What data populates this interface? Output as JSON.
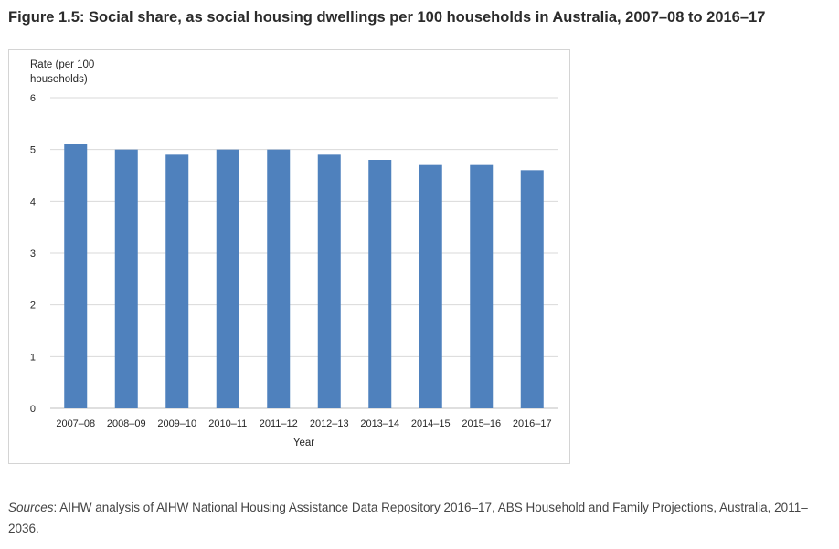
{
  "figure": {
    "title": "Figure 1.5: Social share, as social housing dwellings per 100 households in Australia, 2007–08 to 2016–17"
  },
  "chart_data": {
    "type": "bar",
    "title": "",
    "xlabel": "Year",
    "ylabel_lines": [
      "Rate (per 100",
      "households)"
    ],
    "categories": [
      "2007–08",
      "2008–09",
      "2009–10",
      "2010–11",
      "2011–12",
      "2012–13",
      "2013–14",
      "2014–15",
      "2015–16",
      "2016–17"
    ],
    "values": [
      5.1,
      5.0,
      4.9,
      5.0,
      5.0,
      4.9,
      4.8,
      4.7,
      4.7,
      4.6
    ],
    "ylim": [
      0,
      6
    ],
    "yticks": [
      0,
      1,
      2,
      3,
      4,
      5,
      6
    ],
    "grid": true,
    "bar_color": "#4f81bd",
    "grid_color": "#d9d9d9"
  },
  "sources": {
    "label": "Sources",
    "text": ": AIHW analysis of AIHW National Housing Assistance Data Repository 2016–17, ABS Household and Family Projections, Australia, 2011–2036."
  }
}
